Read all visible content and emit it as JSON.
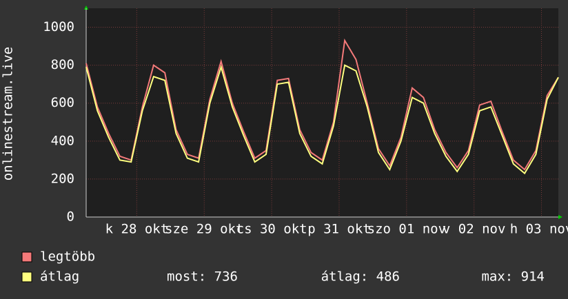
{
  "chart_data": {
    "type": "line",
    "y_label": "onlinestream.live",
    "x": [
      0,
      4,
      8,
      12,
      16,
      20,
      24,
      28,
      32,
      36,
      40,
      44,
      48,
      52,
      56,
      60,
      64,
      68,
      72,
      76,
      80,
      84,
      88,
      92,
      96,
      100,
      104,
      108,
      112,
      116,
      120,
      124,
      128,
      132,
      136,
      140,
      144,
      148,
      152,
      156,
      160,
      164,
      168
    ],
    "xlim": [
      0,
      168
    ],
    "xticks": [
      {
        "value": 18,
        "label": "k 28 okt"
      },
      {
        "value": 42,
        "label": "sze 29 okt"
      },
      {
        "value": 66,
        "label": "cs 30 okt"
      },
      {
        "value": 90,
        "label": "p 31 okt"
      },
      {
        "value": 114,
        "label": "szo 01 nov"
      },
      {
        "value": 138,
        "label": "v 02 nov"
      },
      {
        "value": 162,
        "label": "h 03 nov"
      }
    ],
    "ylim": [
      0,
      1100
    ],
    "yticks": [
      0,
      200,
      400,
      600,
      800,
      1000
    ],
    "grid": true,
    "series": [
      {
        "name": "legtöbb",
        "color": "#f47a7a",
        "values": [
          810,
          580,
          440,
          320,
          300,
          580,
          800,
          760,
          460,
          330,
          310,
          620,
          820,
          600,
          450,
          310,
          350,
          720,
          730,
          460,
          340,
          300,
          500,
          930,
          830,
          600,
          360,
          270,
          420,
          680,
          630,
          460,
          340,
          260,
          350,
          590,
          610,
          450,
          300,
          250,
          350,
          640,
          736
        ]
      },
      {
        "name": "átlag",
        "color": "#ffff80",
        "values": [
          790,
          560,
          420,
          300,
          290,
          560,
          740,
          720,
          440,
          310,
          290,
          600,
          790,
          580,
          430,
          290,
          330,
          700,
          710,
          440,
          320,
          280,
          480,
          800,
          770,
          580,
          340,
          250,
          400,
          630,
          600,
          440,
          320,
          240,
          330,
          560,
          580,
          430,
          280,
          230,
          330,
          620,
          736
        ]
      }
    ],
    "stats": [
      "most: 736",
      "átlag: 486",
      "max: 914"
    ]
  }
}
